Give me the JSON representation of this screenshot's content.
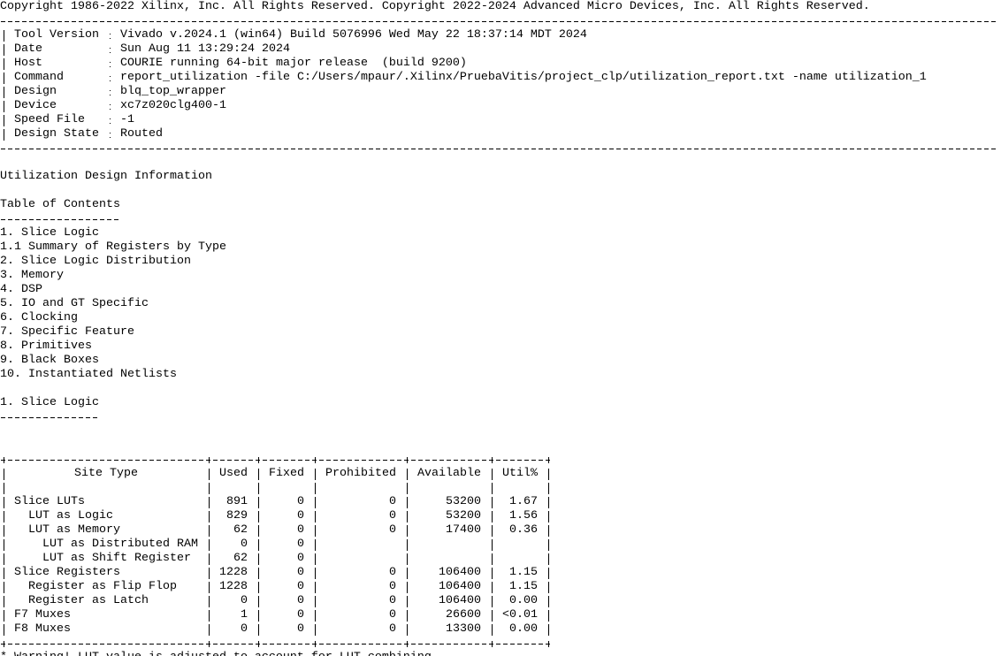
{
  "header": {
    "copyright": "Copyright 1986-2022 Xilinx, Inc. All Rights Reserved. Copyright 2022-2024 Advanced Micro Devices, Inc. All Rights Reserved.",
    "fields": [
      {
        "label": "Tool Version",
        "value": "Vivado v.2024.1 (win64) Build 5076996 Wed May 22 18:37:14 MDT 2024"
      },
      {
        "label": "Date",
        "value": "Sun Aug 11 13:29:24 2024"
      },
      {
        "label": "Host",
        "value": "COURIE running 64-bit major release  (build 9200)"
      },
      {
        "label": "Command",
        "value": "report_utilization -file C:/Users/mpaur/.Xilinx/PruebaVitis/project_clp/utilization_report.txt -name utilization_1"
      },
      {
        "label": "Design",
        "value": "blq_top_wrapper"
      },
      {
        "label": "Device",
        "value": "xc7z020clg400-1"
      },
      {
        "label": "Speed File",
        "value": "-1"
      },
      {
        "label": "Design State",
        "value": "Routed"
      }
    ]
  },
  "title": "Utilization Design Information",
  "toc": {
    "heading": "Table of Contents",
    "items": [
      "1. Slice Logic",
      "1.1 Summary of Registers by Type",
      "2. Slice Logic Distribution",
      "3. Memory",
      "4. DSP",
      "5. IO and GT Specific",
      "6. Clocking",
      "7. Specific Feature",
      "8. Primitives",
      "9. Black Boxes",
      "10. Instantiated Netlists"
    ]
  },
  "section": {
    "heading": "1. Slice Logic"
  },
  "table": {
    "columns": [
      "Site Type",
      "Used",
      "Fixed",
      "Prohibited",
      "Available",
      "Util%"
    ],
    "rows": [
      [
        "Slice LUTs",
        "891",
        "0",
        "0",
        "53200",
        "1.67"
      ],
      [
        "  LUT as Logic",
        "829",
        "0",
        "0",
        "53200",
        "1.56"
      ],
      [
        "  LUT as Memory",
        "62",
        "0",
        "0",
        "17400",
        "0.36"
      ],
      [
        "    LUT as Distributed RAM",
        "0",
        "0",
        null,
        null,
        null
      ],
      [
        "    LUT as Shift Register",
        "62",
        "0",
        null,
        null,
        null
      ],
      [
        "Slice Registers",
        "1228",
        "0",
        "0",
        "106400",
        "1.15"
      ],
      [
        "  Register as Flip Flop",
        "1228",
        "0",
        "0",
        "106400",
        "1.15"
      ],
      [
        "  Register as Latch",
        "0",
        "0",
        "0",
        "106400",
        "0.00"
      ],
      [
        "F7 Muxes",
        "1",
        "0",
        "0",
        "26600",
        "<0.01"
      ],
      [
        "F8 Muxes",
        "0",
        "0",
        "0",
        "13300",
        "0.00"
      ]
    ]
  },
  "note": "* Warning! LUT value is adjusted to account for LUT combining."
}
